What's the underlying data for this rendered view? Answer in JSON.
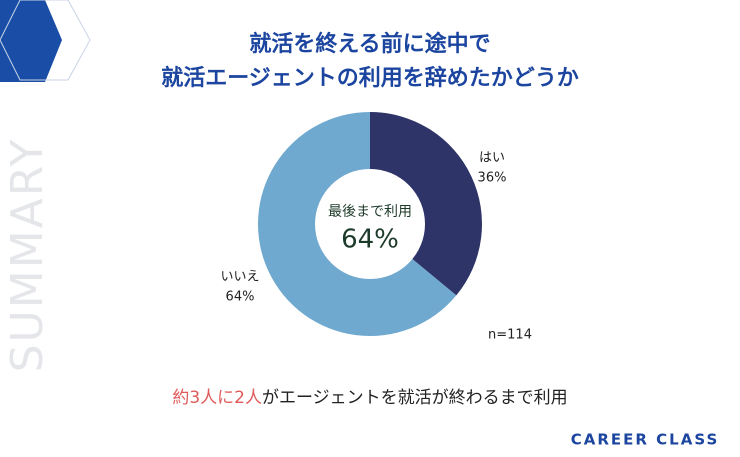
{
  "chart_data": {
    "type": "donut",
    "title": [
      "就活を終える前に途中で",
      "就活エージェントの利用を辞めたかどうか"
    ],
    "categories": [
      "はい",
      "いいえ"
    ],
    "values": [
      36,
      64
    ],
    "value_labels": [
      "36%",
      "64%"
    ],
    "colors": [
      "#2e3468",
      "#70a9cf"
    ],
    "center_label": "最後まで利用",
    "center_value": "64%",
    "note": "n=114"
  },
  "summary": {
    "highlight": "約3人に2人",
    "text": "がエージェントを就活が終わるまで利用"
  },
  "side_label": "SUMMARY",
  "brand": "CAREER CLASS"
}
